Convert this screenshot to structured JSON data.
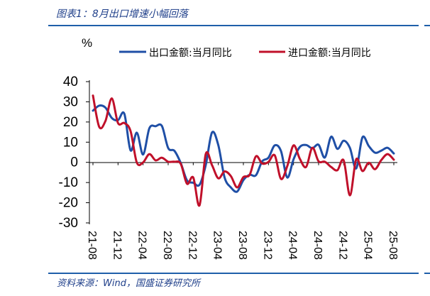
{
  "caption": "图表1：8月出口增速小幅回落",
  "source": "资料来源：Wind，国盛证券研究所",
  "colors": {
    "accent": "#1f3f8a",
    "rule": "#1f5faa",
    "export": "#1f4fa6",
    "import": "#c0102a"
  },
  "chart_data": {
    "type": "line",
    "title": "图表1：8月出口增速小幅回落",
    "ylabel": "%",
    "xlabel": "",
    "ylim": [
      -30,
      40
    ],
    "yticks": [
      40,
      30,
      20,
      10,
      0,
      -10,
      -20,
      -30
    ],
    "xtick_labels": [
      "21-08",
      "21-12",
      "22-04",
      "22-08",
      "22-12",
      "23-04",
      "23-08",
      "23-12",
      "24-04",
      "24-08",
      "24-12",
      "25-04",
      "25-08"
    ],
    "x": [
      "21-08",
      "21-09",
      "21-10",
      "21-11",
      "21-12",
      "22-01",
      "22-02",
      "22-03",
      "22-04",
      "22-05",
      "22-06",
      "22-07",
      "22-08",
      "22-09",
      "22-10",
      "22-11",
      "22-12",
      "23-01",
      "23-02",
      "23-03",
      "23-04",
      "23-05",
      "23-06",
      "23-07",
      "23-08",
      "23-09",
      "23-10",
      "23-11",
      "23-12",
      "24-01",
      "24-02",
      "24-03",
      "24-04",
      "24-05",
      "24-06",
      "24-07",
      "24-08",
      "24-09",
      "24-10",
      "24-11",
      "24-12",
      "25-01",
      "25-02",
      "25-03",
      "25-04",
      "25-05",
      "25-06",
      "25-07",
      "25-08"
    ],
    "series": [
      {
        "name": "出口金额:当月同比",
        "values": [
          25.6,
          28.1,
          27.1,
          22.0,
          20.9,
          24.1,
          5.9,
          14.7,
          3.9,
          16.9,
          17.9,
          18.0,
          7.1,
          5.7,
          -0.3,
          -8.9,
          -10.1,
          -11.1,
          -1.3,
          14.8,
          8.5,
          -7.5,
          -12.4,
          -14.5,
          -8.8,
          -6.2,
          -6.4,
          0.5,
          2.3,
          8.4,
          5.6,
          -7.5,
          1.5,
          7.6,
          8.6,
          7.0,
          8.7,
          2.4,
          12.7,
          6.7,
          10.7,
          7.1,
          -3.0,
          12.4,
          8.1,
          4.8,
          5.8,
          7.2,
          4.4
        ]
      },
      {
        "name": "进口金额:当月同比",
        "values": [
          33.1,
          17.6,
          20.6,
          31.7,
          19.5,
          19.5,
          15.5,
          -0.1,
          0.0,
          4.1,
          1.0,
          2.3,
          0.3,
          0.3,
          -0.7,
          -10.6,
          -7.5,
          -21.3,
          4.2,
          -1.4,
          -7.9,
          -4.5,
          -6.8,
          -12.4,
          -7.3,
          -6.2,
          3.0,
          -0.6,
          0.2,
          3.5,
          -8.2,
          -1.9,
          8.4,
          1.8,
          -2.3,
          7.2,
          0.5,
          0.3,
          -2.3,
          -3.9,
          1.0,
          -16.3,
          1.5,
          -4.3,
          -0.2,
          -3.4,
          1.1,
          4.1,
          1.3
        ]
      }
    ]
  }
}
